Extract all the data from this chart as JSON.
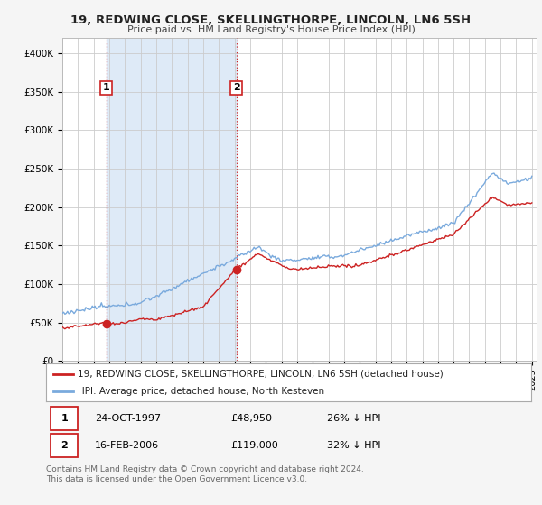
{
  "title": "19, REDWING CLOSE, SKELLINGTHORPE, LINCOLN, LN6 5SH",
  "subtitle": "Price paid vs. HM Land Registry's House Price Index (HPI)",
  "hpi_color": "#7aaadd",
  "hpi_fill_color": "#d0e4f7",
  "price_color": "#cc2222",
  "dashed_line_color": "#cc2222",
  "background_color": "#f5f5f5",
  "plot_bg_color": "#ffffff",
  "shaded_bg_color": "#deeaf7",
  "ylim": [
    0,
    420000
  ],
  "yticks": [
    0,
    50000,
    100000,
    150000,
    200000,
    250000,
    300000,
    350000,
    400000
  ],
  "ytick_labels": [
    "£0",
    "£50K",
    "£100K",
    "£150K",
    "£200K",
    "£250K",
    "£300K",
    "£350K",
    "£400K"
  ],
  "legend_line1": "19, REDWING CLOSE, SKELLINGTHORPE, LINCOLN, LN6 5SH (detached house)",
  "legend_line2": "HPI: Average price, detached house, North Kesteven",
  "transaction1_label": "1",
  "transaction1_date": "24-OCT-1997",
  "transaction1_price": "£48,950",
  "transaction1_hpi": "26% ↓ HPI",
  "transaction1_year": 1997.81,
  "transaction1_value": 48950,
  "transaction2_label": "2",
  "transaction2_date": "16-FEB-2006",
  "transaction2_price": "£119,000",
  "transaction2_hpi": "32% ↓ HPI",
  "transaction2_year": 2006.12,
  "transaction2_value": 119000,
  "footer": "Contains HM Land Registry data © Crown copyright and database right 2024.\nThis data is licensed under the Open Government Licence v3.0."
}
